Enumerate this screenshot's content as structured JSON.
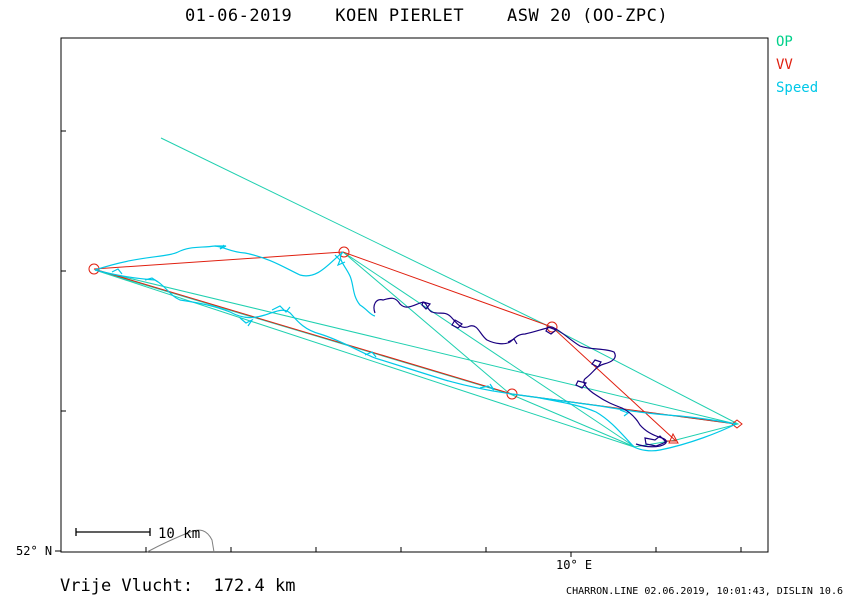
{
  "title": {
    "date": "01-06-2019",
    "pilot": "KOEN PIERLET",
    "glider": "ASW 20 (OO-ZPC)"
  },
  "legend": {
    "op": {
      "label": "OP",
      "color": "#00d08a"
    },
    "vv": {
      "label": "VV",
      "color": "#e02010"
    },
    "speed": {
      "label": "Speed",
      "color": "#00c8e8"
    }
  },
  "axes": {
    "lat_label": "52° N",
    "lon_label": "10° E"
  },
  "scale_bar": {
    "label": "10 km"
  },
  "footer": {
    "distance_label": "Vrije Vlucht:",
    "distance_value": "172.4 km",
    "credits": "CHARRON.LINE 02.06.2019, 10:01:43, DISLIN 10.6"
  },
  "colors": {
    "frame": "#000000",
    "track_speed": "#00c8e8",
    "track_climb": "#1a0080",
    "route_vv": "#e02010",
    "route_op": "#20d0b0",
    "border": "#808080"
  },
  "icons": [
    "turnpoint-circle-icon",
    "start-marker-icon",
    "finish-triangle-icon"
  ]
}
